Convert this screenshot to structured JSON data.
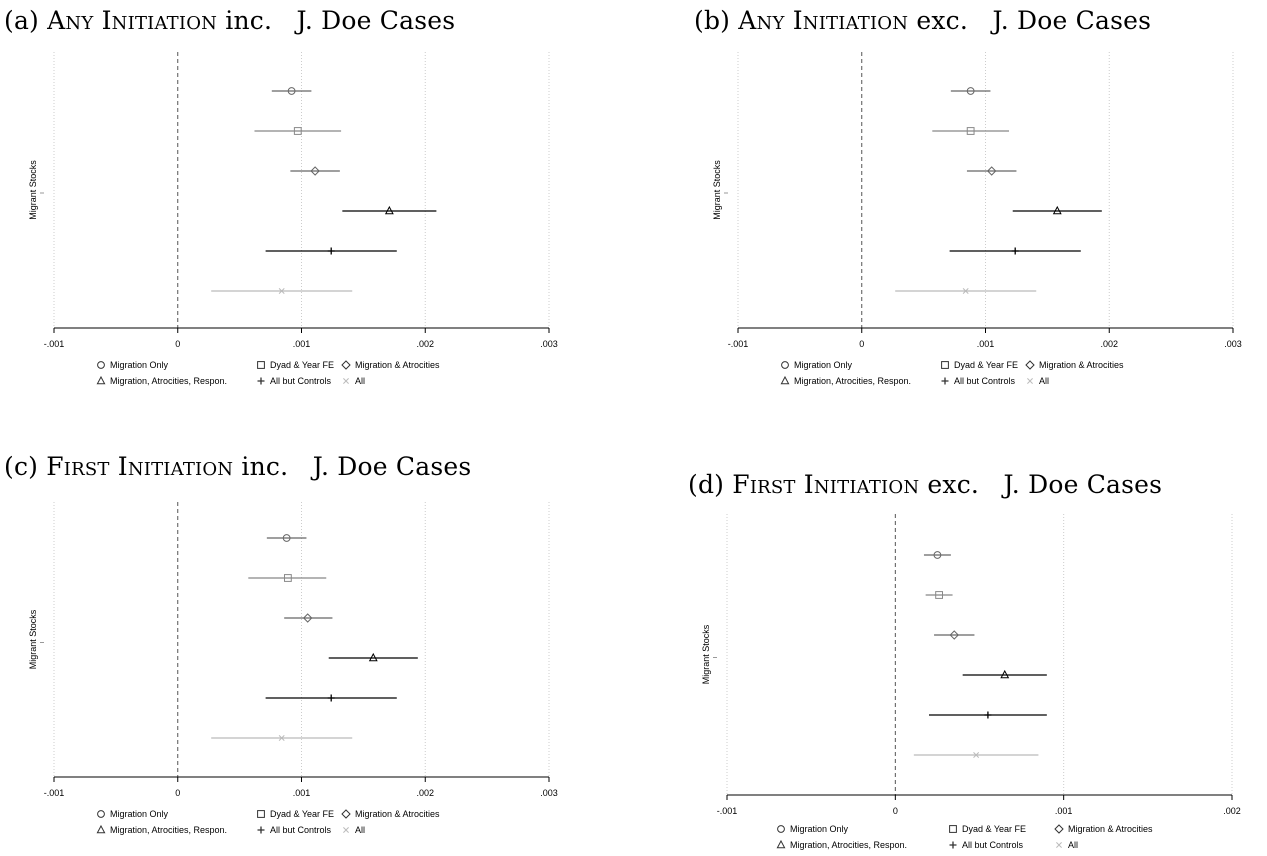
{
  "figure": {
    "panels": [
      {
        "label": "(a)",
        "title_main": "Any Initiation",
        "title_rest": "inc.   J. Doe Cases"
      },
      {
        "label": "(b)",
        "title_main": "Any Initiation",
        "title_rest": "exc.   J. Doe Cases"
      },
      {
        "label": "(c)",
        "title_main": "First Initiation",
        "title_rest": "inc.   J. Doe Cases"
      },
      {
        "label": "(d)",
        "title_main": "First Initiation",
        "title_rest": "exc.   J. Doe Cases"
      }
    ]
  },
  "colors": {
    "black": "#000000",
    "dark_gray": "#666666",
    "mid_gray": "#888888",
    "light_gray": "#bbbbbb",
    "grid": "#cccccc"
  },
  "chart_data": [
    {
      "type": "scatter",
      "title": "(a) Any Initiation inc. J. Doe Cases",
      "ylabel": "Migrant Stocks",
      "xlim": [
        -0.001,
        0.003
      ],
      "xticks": [
        -0.001,
        0,
        0.001,
        0.002,
        0.003
      ],
      "xtick_labels": [
        "-.001",
        "0",
        ".001",
        ".002",
        ".003"
      ],
      "reference_line": 0,
      "legend_position": "bottom",
      "series": [
        {
          "name": "Migration Only",
          "marker": "circle",
          "estimate": 0.00092,
          "ci": [
            0.00076,
            0.00108
          ],
          "color": "#666666"
        },
        {
          "name": "Dyad & Year FE",
          "marker": "square",
          "estimate": 0.00097,
          "ci": [
            0.00062,
            0.00132
          ],
          "color": "#888888"
        },
        {
          "name": "Migration & Atrocities",
          "marker": "diamond",
          "estimate": 0.00111,
          "ci": [
            0.00091,
            0.00131
          ],
          "color": "#666666"
        },
        {
          "name": "Migration, Atrocities, Respon.",
          "marker": "triangle",
          "estimate": 0.00171,
          "ci": [
            0.00133,
            0.00209
          ],
          "color": "#000000"
        },
        {
          "name": "All but Controls",
          "marker": "plus",
          "estimate": 0.00124,
          "ci": [
            0.00071,
            0.00177
          ],
          "color": "#000000"
        },
        {
          "name": "All",
          "marker": "x",
          "estimate": 0.00084,
          "ci": [
            0.00027,
            0.00141
          ],
          "color": "#bbbbbb"
        }
      ]
    },
    {
      "type": "scatter",
      "title": "(b) Any Initiation exc. J. Doe Cases",
      "ylabel": "Migrant Stocks",
      "xlim": [
        -0.001,
        0.003
      ],
      "xticks": [
        -0.001,
        0,
        0.001,
        0.002,
        0.003
      ],
      "xtick_labels": [
        "-.001",
        "0",
        ".001",
        ".002",
        ".003"
      ],
      "reference_line": 0,
      "legend_position": "bottom",
      "series": [
        {
          "name": "Migration Only",
          "marker": "circle",
          "estimate": 0.00088,
          "ci": [
            0.00072,
            0.00104
          ],
          "color": "#666666"
        },
        {
          "name": "Dyad & Year FE",
          "marker": "square",
          "estimate": 0.00088,
          "ci": [
            0.00057,
            0.00119
          ],
          "color": "#888888"
        },
        {
          "name": "Migration & Atrocities",
          "marker": "diamond",
          "estimate": 0.00105,
          "ci": [
            0.00085,
            0.00125
          ],
          "color": "#666666"
        },
        {
          "name": "Migration, Atrocities, Respon.",
          "marker": "triangle",
          "estimate": 0.00158,
          "ci": [
            0.00122,
            0.00194
          ],
          "color": "#000000"
        },
        {
          "name": "All but Controls",
          "marker": "plus",
          "estimate": 0.00124,
          "ci": [
            0.00071,
            0.00177
          ],
          "color": "#000000"
        },
        {
          "name": "All",
          "marker": "x",
          "estimate": 0.00084,
          "ci": [
            0.00027,
            0.00141
          ],
          "color": "#bbbbbb"
        }
      ]
    },
    {
      "type": "scatter",
      "title": "(c) First Initiation inc. J. Doe Cases",
      "ylabel": "Migrant Stocks",
      "xlim": [
        -0.001,
        0.003
      ],
      "xticks": [
        -0.001,
        0,
        0.001,
        0.002,
        0.003
      ],
      "xtick_labels": [
        "-.001",
        "0",
        ".001",
        ".002",
        ".003"
      ],
      "reference_line": 0,
      "legend_position": "bottom",
      "series": [
        {
          "name": "Migration Only",
          "marker": "circle",
          "estimate": 0.00088,
          "ci": [
            0.00072,
            0.00104
          ],
          "color": "#666666"
        },
        {
          "name": "Dyad & Year FE",
          "marker": "square",
          "estimate": 0.00089,
          "ci": [
            0.00057,
            0.0012
          ],
          "color": "#888888"
        },
        {
          "name": "Migration & Atrocities",
          "marker": "diamond",
          "estimate": 0.00105,
          "ci": [
            0.00086,
            0.00125
          ],
          "color": "#666666"
        },
        {
          "name": "Migration, Atrocities, Respon.",
          "marker": "triangle",
          "estimate": 0.00158,
          "ci": [
            0.00122,
            0.00194
          ],
          "color": "#000000"
        },
        {
          "name": "All but Controls",
          "marker": "plus",
          "estimate": 0.00124,
          "ci": [
            0.00071,
            0.00177
          ],
          "color": "#000000"
        },
        {
          "name": "All",
          "marker": "x",
          "estimate": 0.00084,
          "ci": [
            0.00027,
            0.00141
          ],
          "color": "#bbbbbb"
        }
      ]
    },
    {
      "type": "scatter",
      "title": "(d) First Initiation exc. J. Doe Cases",
      "ylabel": "Migrant Stocks",
      "xlim": [
        -0.001,
        0.002
      ],
      "xticks": [
        -0.001,
        0,
        0.001,
        0.002
      ],
      "xtick_labels": [
        "-.001",
        "0",
        ".001",
        ".002"
      ],
      "reference_line": 0,
      "legend_position": "bottom",
      "series": [
        {
          "name": "Migration Only",
          "marker": "circle",
          "estimate": 0.00025,
          "ci": [
            0.00017,
            0.00033
          ],
          "color": "#666666"
        },
        {
          "name": "Dyad & Year FE",
          "marker": "square",
          "estimate": 0.00026,
          "ci": [
            0.00018,
            0.00034
          ],
          "color": "#888888"
        },
        {
          "name": "Migration & Atrocities",
          "marker": "diamond",
          "estimate": 0.00035,
          "ci": [
            0.00023,
            0.00047
          ],
          "color": "#666666"
        },
        {
          "name": "Migration, Atrocities, Respon.",
          "marker": "triangle",
          "estimate": 0.00065,
          "ci": [
            0.0004,
            0.0009
          ],
          "color": "#000000"
        },
        {
          "name": "All but Controls",
          "marker": "plus",
          "estimate": 0.00055,
          "ci": [
            0.0002,
            0.0009
          ],
          "color": "#000000"
        },
        {
          "name": "All",
          "marker": "x",
          "estimate": 0.00048,
          "ci": [
            0.00011,
            0.00085
          ],
          "color": "#bbbbbb"
        }
      ]
    }
  ]
}
